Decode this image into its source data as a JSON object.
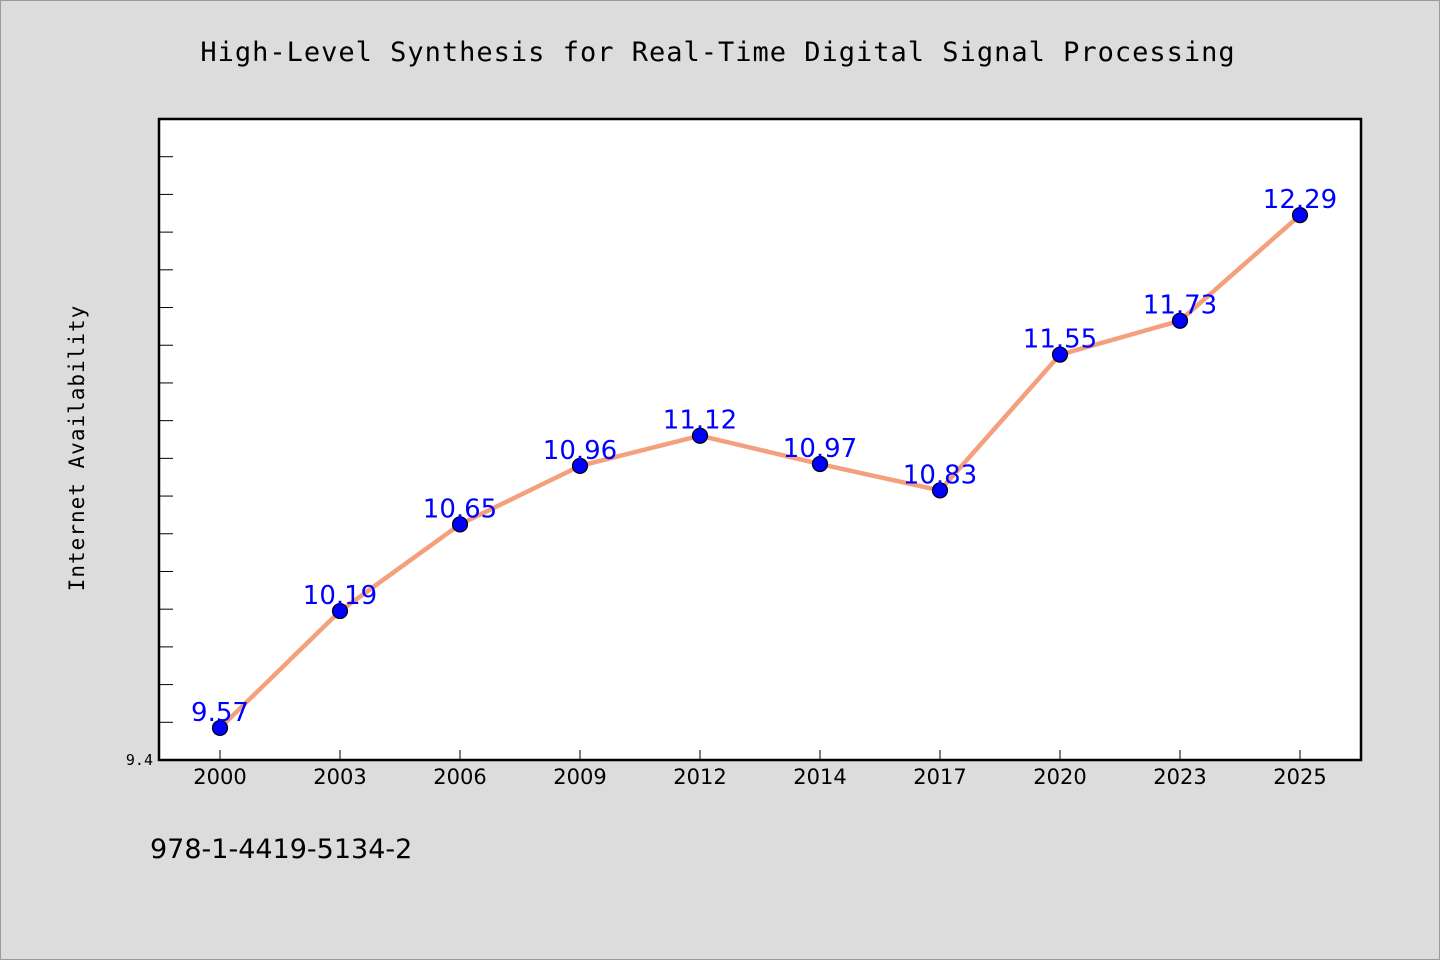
{
  "chart_data": {
    "type": "line",
    "title": "High-Level Synthesis for Real-Time Digital Signal Processing",
    "xlabel": "",
    "ylabel": "Internet Availability",
    "categories": [
      "2000",
      "2003",
      "2006",
      "2009",
      "2012",
      "2014",
      "2017",
      "2020",
      "2023",
      "2025"
    ],
    "values": [
      9.57,
      10.19,
      10.65,
      10.96,
      11.12,
      10.97,
      10.83,
      11.55,
      11.73,
      12.29
    ],
    "data_labels": [
      "9.57",
      "10.19",
      "10.65",
      "10.96",
      "11.12",
      "10.97",
      "10.83",
      "11.55",
      "11.73",
      "12.29"
    ],
    "y_tick_labels": [
      "9.4"
    ],
    "ylim": [
      9.4,
      12.8
    ],
    "grid": false,
    "line_color": "#f4a07c",
    "marker_color": "#0000ff",
    "label_color": "#0000ff"
  },
  "footer": {
    "isbn": "978-1-4419-5134-2"
  }
}
